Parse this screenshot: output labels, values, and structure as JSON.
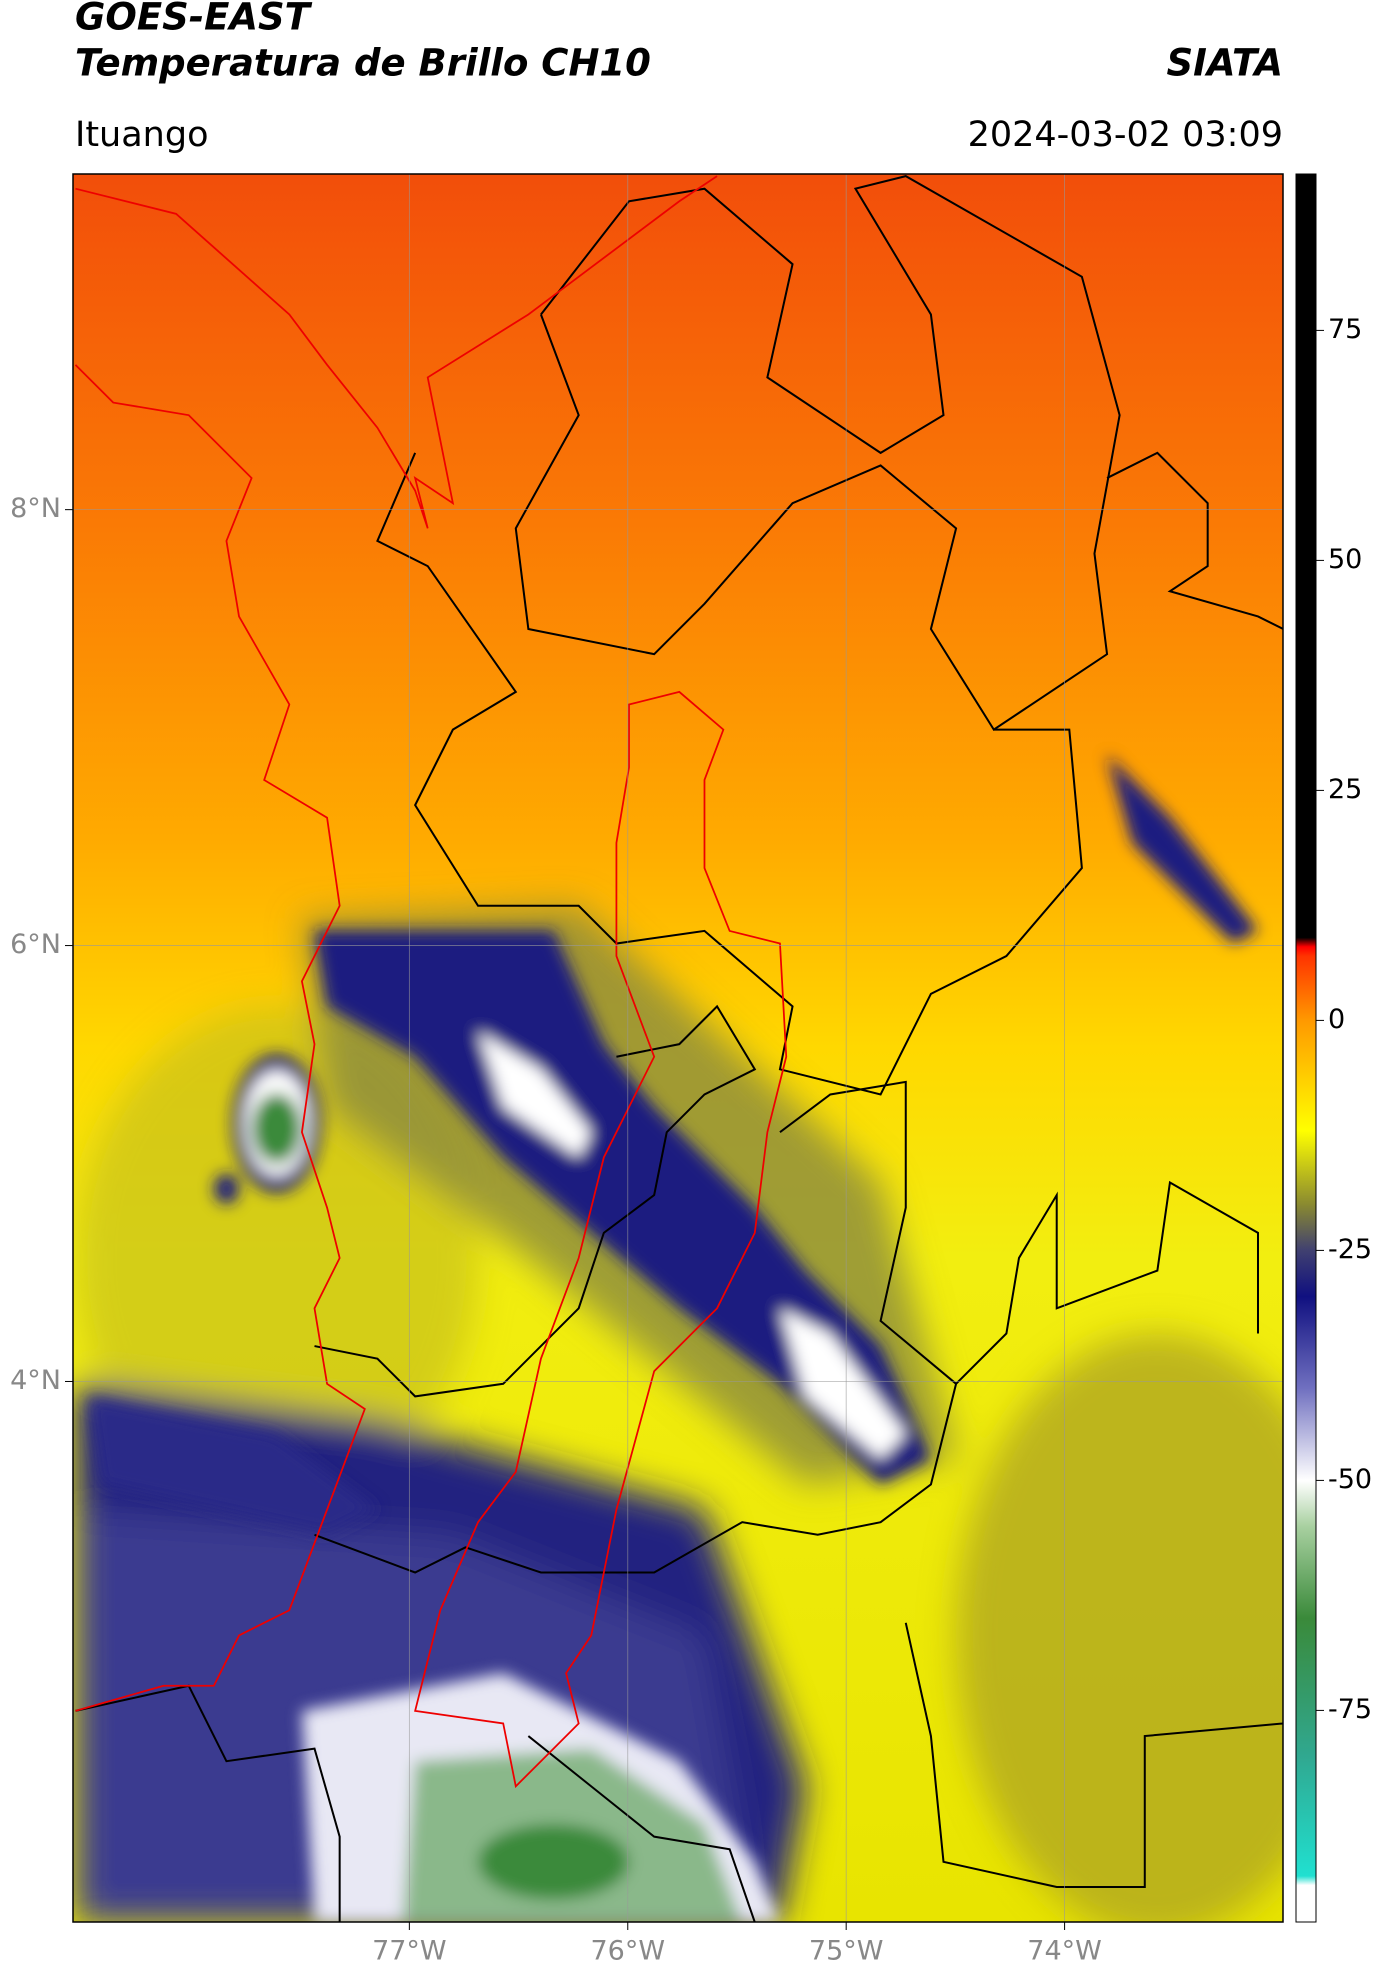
{
  "chart_data": {
    "type": "map",
    "title": "GOES-EAST",
    "subtitle": "Temperatura de Brillo CH10",
    "source": "SIATA",
    "location": "Ituango",
    "datetime": "2024-03-02 03:09",
    "xlim": [
      -78.54,
      -73.0
    ],
    "ylim": [
      1.52,
      9.54
    ],
    "xticks": [
      {
        "value": -77,
        "label": "77°W"
      },
      {
        "value": -76,
        "label": "76°W"
      },
      {
        "value": -75,
        "label": "75°W"
      },
      {
        "value": -74,
        "label": "74°W"
      }
    ],
    "yticks": [
      {
        "value": 8,
        "label": "8°N"
      },
      {
        "value": 6,
        "label": "6°N"
      },
      {
        "value": 4,
        "label": "4°N"
      }
    ],
    "grid": true,
    "colorbar_lim": [
      -98,
      92
    ],
    "colorbar_ticks": [
      75,
      50,
      25,
      0,
      -25,
      -50,
      -75
    ],
    "colormap": [
      [
        -98,
        "#ffffff"
      ],
      [
        -94,
        "#ffffff"
      ],
      [
        -93,
        "#20e0d0"
      ],
      [
        -80,
        "#30a890"
      ],
      [
        -65,
        "#3a8a3a"
      ],
      [
        -55,
        "#a8d0a0"
      ],
      [
        -50,
        "#ffffff"
      ],
      [
        -40,
        "#7070c0"
      ],
      [
        -30,
        "#101080"
      ],
      [
        -25,
        "#404070"
      ],
      [
        -20,
        "#8a8a30"
      ],
      [
        -12,
        "#ffff00"
      ],
      [
        0,
        "#ff9900"
      ],
      [
        7,
        "#ff3300"
      ],
      [
        8,
        "#ff0000"
      ],
      [
        9,
        "#000000"
      ],
      [
        92,
        "#000000"
      ]
    ]
  }
}
